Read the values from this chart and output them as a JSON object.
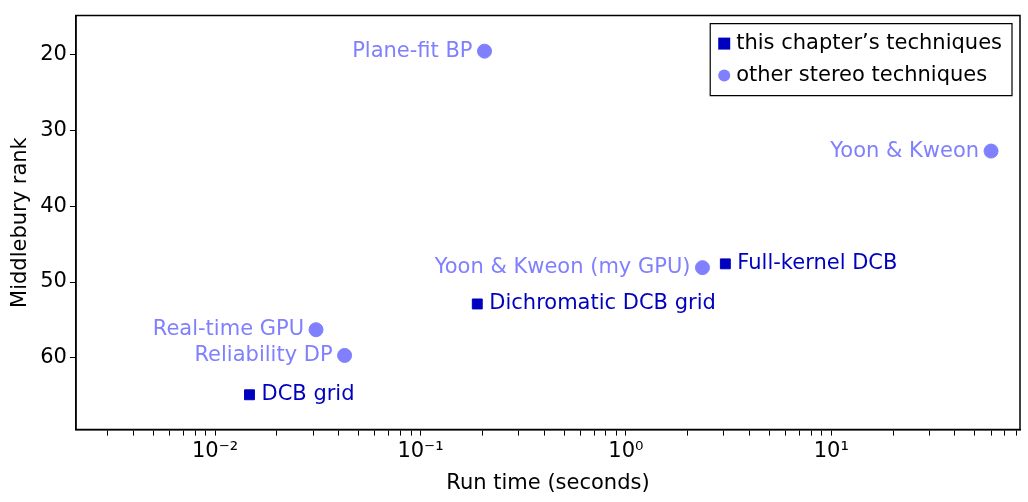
{
  "chart_data": {
    "type": "scatter",
    "xlabel": "Run time (seconds)",
    "ylabel": "Middlebury rank",
    "log": "x",
    "grid": false,
    "legend": "top right",
    "xlim": [
      0.0021,
      83
    ],
    "ylim": [
      69.5,
      14.8
    ],
    "xticks": [
      {
        "value": 0.01,
        "label": "10⁻²"
      },
      {
        "value": 0.1,
        "label": "10⁻¹"
      },
      {
        "value": 1,
        "label": "10⁰"
      },
      {
        "value": 10,
        "label": "10¹"
      },
      {
        "value": 0.003,
        "label": null
      },
      {
        "value": 0.004,
        "label": null
      },
      {
        "value": 0.005,
        "label": null
      },
      {
        "value": 0.006,
        "label": null
      },
      {
        "value": 0.007,
        "label": null
      },
      {
        "value": 0.008,
        "label": null
      },
      {
        "value": 0.009,
        "label": null
      },
      {
        "value": 0.02,
        "label": null
      },
      {
        "value": 0.03,
        "label": null
      },
      {
        "value": 0.04,
        "label": null
      },
      {
        "value": 0.05,
        "label": null
      },
      {
        "value": 0.06,
        "label": null
      },
      {
        "value": 0.07,
        "label": null
      },
      {
        "value": 0.08,
        "label": null
      },
      {
        "value": 0.09,
        "label": null
      },
      {
        "value": 0.2,
        "label": null
      },
      {
        "value": 0.3,
        "label": null
      },
      {
        "value": 0.4,
        "label": null
      },
      {
        "value": 0.5,
        "label": null
      },
      {
        "value": 0.6,
        "label": null
      },
      {
        "value": 0.7,
        "label": null
      },
      {
        "value": 0.8,
        "label": null
      },
      {
        "value": 0.9,
        "label": null
      },
      {
        "value": 2,
        "label": null
      },
      {
        "value": 3,
        "label": null
      },
      {
        "value": 4,
        "label": null
      },
      {
        "value": 5,
        "label": null
      },
      {
        "value": 6,
        "label": null
      },
      {
        "value": 7,
        "label": null
      },
      {
        "value": 8,
        "label": null
      },
      {
        "value": 9,
        "label": null
      },
      {
        "value": 20,
        "label": null
      },
      {
        "value": 30,
        "label": null
      },
      {
        "value": 40,
        "label": null
      },
      {
        "value": 50,
        "label": null
      },
      {
        "value": 60,
        "label": null
      },
      {
        "value": 70,
        "label": null
      },
      {
        "value": 80,
        "label": null
      }
    ],
    "yticks": [
      20,
      30,
      40,
      50,
      60
    ],
    "series": [
      {
        "name": "this chapter’s techniques",
        "color": "#0000bf",
        "marker": "square",
        "x": [
          3.05,
          0.189,
          0.0147
        ],
        "values": [
          47.6,
          52.9,
          64.9
        ],
        "value_labels": [
          "Full-kernel DCB",
          "Dichromatic DCB grid",
          "DCB grid"
        ]
      },
      {
        "name": "other stereo techniques",
        "color": "#8080ff",
        "marker": "circle",
        "x": [
          0.205,
          60,
          2.36,
          0.031,
          0.0427
        ],
        "values": [
          19.5,
          32.7,
          48.1,
          56.3,
          59.7
        ],
        "value_labels": [
          "Plane-fit BP",
          "Yoon & Kweon",
          "Yoon & Kweon (my GPU)",
          "Real-time GPU",
          "Reliability DP"
        ]
      }
    ]
  }
}
